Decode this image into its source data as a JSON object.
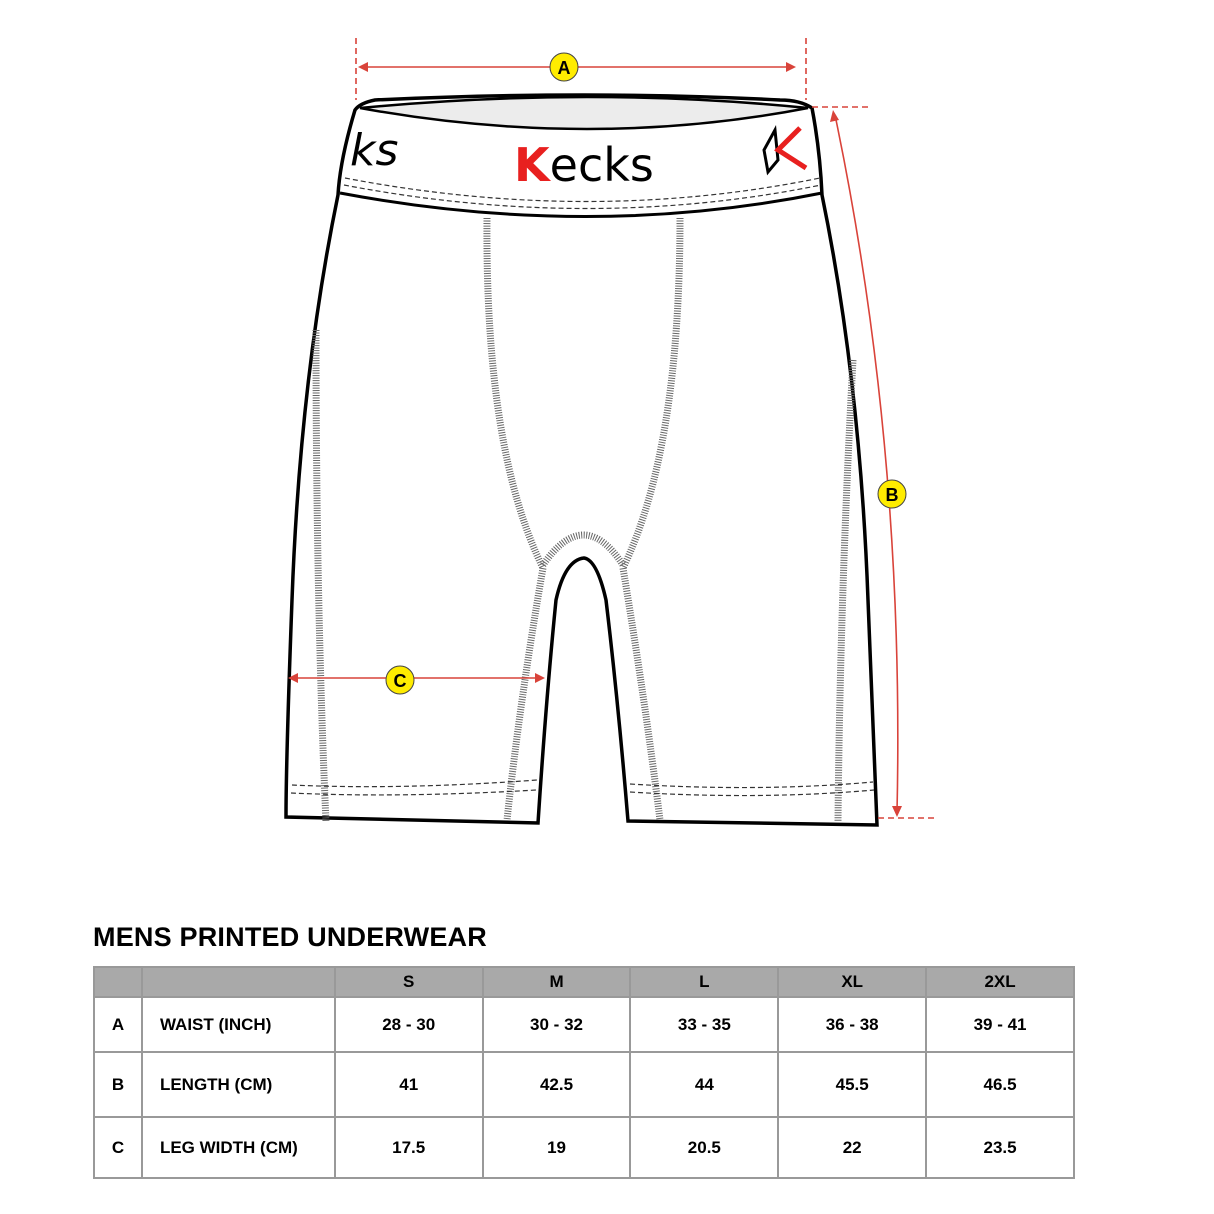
{
  "diagram": {
    "brand": "Kecks",
    "markers": [
      {
        "letter": "A",
        "measure": "waist"
      },
      {
        "letter": "B",
        "measure": "length"
      },
      {
        "letter": "C",
        "measure": "leg width"
      }
    ],
    "colors": {
      "dimension_line": "#d9433a",
      "marker_fill": "#ffec00",
      "logo_red": "#e8201f",
      "waistband_inner": "#ececec"
    }
  },
  "table": {
    "title": "MENS PRINTED UNDERWEAR",
    "sizes": [
      "S",
      "M",
      "L",
      "XL",
      "2XL"
    ],
    "rows": [
      {
        "key": "A",
        "label": "WAIST (INCH)",
        "values": [
          "28 - 30",
          "30 - 32",
          "33 - 35",
          "36 - 38",
          "39 - 41"
        ]
      },
      {
        "key": "B",
        "label": "LENGTH (CM)",
        "values": [
          "41",
          "42.5",
          "44",
          "45.5",
          "46.5"
        ]
      },
      {
        "key": "C",
        "label": "LEG WIDTH (CM)",
        "values": [
          "17.5",
          "19",
          "20.5",
          "22",
          "23.5"
        ]
      }
    ],
    "colors": {
      "header_bg": "#a9a9a9",
      "border": "#999999"
    }
  }
}
